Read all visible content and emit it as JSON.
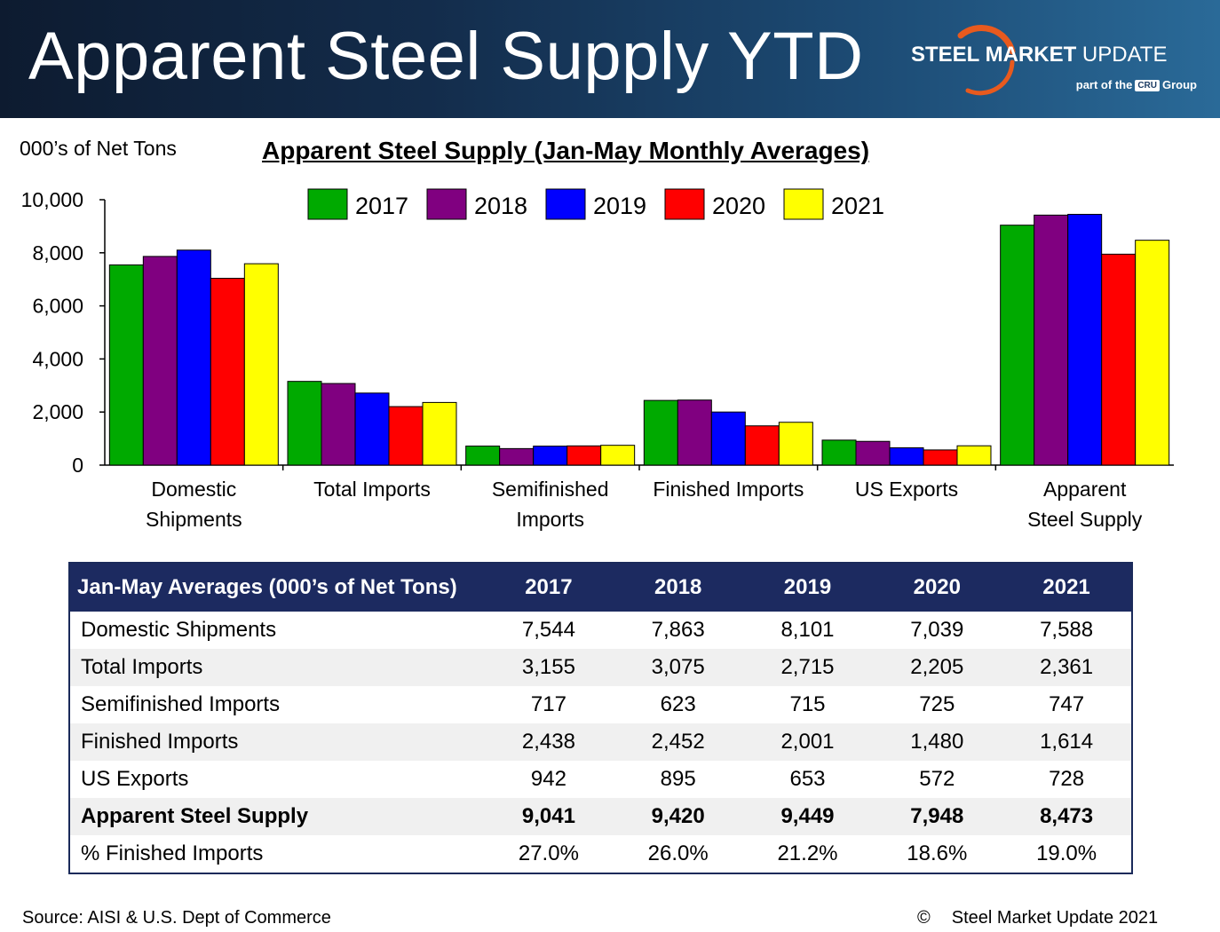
{
  "header": {
    "title": "Apparent Steel Supply YTD",
    "logo_name_bold": "STEEL MARKET",
    "logo_name_rest": "UPDATE",
    "logo_sub_before": "part of the",
    "logo_sub_cru": "CRU",
    "logo_sub_after": "Group"
  },
  "units_label": "000’s of Net Tons",
  "chart_data": {
    "type": "bar",
    "title": "Apparent Steel Supply (Jan-May Monthly Averages)",
    "xlabel": "",
    "ylabel": "000’s of Net Tons",
    "ylim": [
      0,
      10000
    ],
    "yticks": [
      0,
      2000,
      4000,
      6000,
      8000,
      10000
    ],
    "ytick_labels": [
      "0",
      "2,000",
      "4,000",
      "6,000",
      "8,000",
      "10,000"
    ],
    "grid": false,
    "legend_position": "top",
    "categories": [
      [
        "Domestic",
        "Shipments"
      ],
      [
        "Total Imports"
      ],
      [
        "Semifinished",
        "Imports"
      ],
      [
        "Finished Imports"
      ],
      [
        "US Exports"
      ],
      [
        "Apparent",
        "Steel Supply"
      ]
    ],
    "series": [
      {
        "name": "2017",
        "color": "#00aa00",
        "values": [
          7544,
          3155,
          717,
          2438,
          942,
          9041
        ]
      },
      {
        "name": "2018",
        "color": "#800080",
        "values": [
          7863,
          3075,
          623,
          2452,
          895,
          9420
        ]
      },
      {
        "name": "2019",
        "color": "#0000ff",
        "values": [
          8101,
          2715,
          715,
          2001,
          653,
          9449
        ]
      },
      {
        "name": "2020",
        "color": "#ff0000",
        "values": [
          7039,
          2205,
          725,
          1480,
          572,
          7948
        ]
      },
      {
        "name": "2021",
        "color": "#ffff00",
        "values": [
          7588,
          2361,
          747,
          1614,
          728,
          8473
        ]
      }
    ]
  },
  "table": {
    "header_label": "Jan-May Averages (000’s of Net Tons)",
    "years": [
      "2017",
      "2018",
      "2019",
      "2020",
      "2021"
    ],
    "rows": [
      {
        "label": "Domestic Shipments",
        "values": [
          "7,544",
          "7,863",
          "8,101",
          "7,039",
          "7,588"
        ]
      },
      {
        "label": "Total Imports",
        "values": [
          "3,155",
          "3,075",
          "2,715",
          "2,205",
          "2,361"
        ]
      },
      {
        "label": "Semifinished Imports",
        "values": [
          "717",
          "623",
          "715",
          "725",
          "747"
        ]
      },
      {
        "label": "Finished Imports",
        "values": [
          "2,438",
          "2,452",
          "2,001",
          "1,480",
          "1,614"
        ]
      },
      {
        "label": "US Exports",
        "values": [
          "942",
          "895",
          "653",
          "572",
          "728"
        ]
      },
      {
        "label": "Apparent Steel Supply",
        "values": [
          "9,041",
          "9,420",
          "9,449",
          "7,948",
          "8,473"
        ],
        "bold": true
      },
      {
        "label": "% Finished Imports",
        "values": [
          "27.0%",
          "26.0%",
          "21.2%",
          "18.6%",
          "19.0%"
        ]
      }
    ]
  },
  "footer": {
    "source": "Source:  AISI & U.S. Dept of Commerce",
    "copyright_symbol": "©",
    "copyright_text": "Steel Market Update 2021"
  }
}
